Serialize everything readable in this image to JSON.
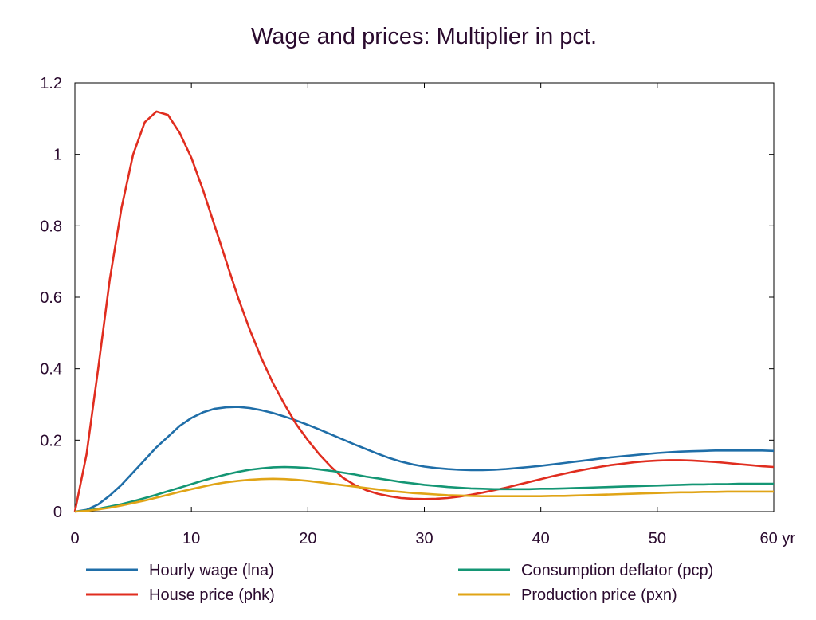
{
  "chart_data": {
    "type": "line",
    "title": "Wage and prices: Multiplier in pct.",
    "xlabel": "",
    "ylabel": "",
    "x_unit": "yr",
    "xlim": [
      0,
      60
    ],
    "ylim": [
      0,
      1.2
    ],
    "x_ticks": [
      0,
      10,
      20,
      30,
      40,
      50,
      60
    ],
    "x_tick_labels": [
      "0",
      "10",
      "20",
      "30",
      "40",
      "50",
      "60 yr"
    ],
    "y_ticks": [
      0,
      0.2,
      0.4,
      0.6,
      0.8,
      1.0,
      1.2
    ],
    "y_tick_labels": [
      "0",
      "0.2",
      "0.4",
      "0.6",
      "0.8",
      "1",
      "1.2"
    ],
    "grid": false,
    "legend_position": "bottom",
    "x": [
      0,
      1,
      2,
      3,
      4,
      5,
      6,
      7,
      8,
      9,
      10,
      11,
      12,
      13,
      14,
      15,
      16,
      17,
      18,
      19,
      20,
      21,
      22,
      23,
      24,
      25,
      26,
      27,
      28,
      29,
      30,
      31,
      32,
      33,
      34,
      35,
      36,
      37,
      38,
      39,
      40,
      41,
      42,
      43,
      44,
      45,
      46,
      47,
      48,
      49,
      50,
      51,
      52,
      53,
      54,
      55,
      56,
      57,
      58,
      59,
      60
    ],
    "series": [
      {
        "name": "Hourly wage (lna)",
        "color": "#1f6ea8",
        "values": [
          0,
          0.005,
          0.02,
          0.045,
          0.075,
          0.11,
          0.145,
          0.18,
          0.21,
          0.24,
          0.262,
          0.278,
          0.288,
          0.292,
          0.293,
          0.29,
          0.284,
          0.276,
          0.266,
          0.255,
          0.243,
          0.23,
          0.216,
          0.202,
          0.188,
          0.175,
          0.162,
          0.15,
          0.14,
          0.132,
          0.126,
          0.122,
          0.119,
          0.117,
          0.116,
          0.116,
          0.117,
          0.119,
          0.122,
          0.125,
          0.128,
          0.132,
          0.136,
          0.14,
          0.144,
          0.148,
          0.152,
          0.155,
          0.158,
          0.161,
          0.164,
          0.166,
          0.168,
          0.169,
          0.17,
          0.171,
          0.171,
          0.171,
          0.171,
          0.171,
          0.17
        ]
      },
      {
        "name": "House price (phk)",
        "color": "#e02d1f",
        "values": [
          0,
          0.16,
          0.4,
          0.65,
          0.85,
          1.0,
          1.09,
          1.12,
          1.11,
          1.06,
          0.99,
          0.9,
          0.8,
          0.7,
          0.6,
          0.51,
          0.43,
          0.36,
          0.3,
          0.245,
          0.2,
          0.16,
          0.125,
          0.095,
          0.075,
          0.06,
          0.05,
          0.043,
          0.038,
          0.036,
          0.035,
          0.036,
          0.038,
          0.042,
          0.047,
          0.053,
          0.06,
          0.067,
          0.075,
          0.083,
          0.091,
          0.099,
          0.106,
          0.113,
          0.119,
          0.125,
          0.13,
          0.134,
          0.138,
          0.141,
          0.143,
          0.144,
          0.144,
          0.143,
          0.141,
          0.139,
          0.136,
          0.133,
          0.13,
          0.127,
          0.125
        ]
      },
      {
        "name": "Consumption deflator (pcp)",
        "color": "#149674",
        "values": [
          0,
          0.003,
          0.008,
          0.014,
          0.021,
          0.029,
          0.038,
          0.047,
          0.057,
          0.067,
          0.077,
          0.087,
          0.096,
          0.104,
          0.111,
          0.117,
          0.121,
          0.124,
          0.125,
          0.124,
          0.122,
          0.118,
          0.114,
          0.109,
          0.104,
          0.098,
          0.093,
          0.088,
          0.083,
          0.079,
          0.075,
          0.072,
          0.069,
          0.067,
          0.065,
          0.064,
          0.063,
          0.063,
          0.063,
          0.063,
          0.064,
          0.064,
          0.065,
          0.066,
          0.067,
          0.068,
          0.069,
          0.07,
          0.071,
          0.072,
          0.073,
          0.074,
          0.075,
          0.076,
          0.076,
          0.077,
          0.077,
          0.078,
          0.078,
          0.078,
          0.078
        ]
      },
      {
        "name": "Production price (pxn)",
        "color": "#e0a416",
        "values": [
          0,
          0.002,
          0.006,
          0.011,
          0.017,
          0.024,
          0.031,
          0.039,
          0.047,
          0.055,
          0.063,
          0.07,
          0.077,
          0.082,
          0.086,
          0.089,
          0.091,
          0.092,
          0.091,
          0.089,
          0.086,
          0.082,
          0.078,
          0.074,
          0.07,
          0.066,
          0.062,
          0.058,
          0.055,
          0.052,
          0.05,
          0.048,
          0.046,
          0.045,
          0.044,
          0.043,
          0.043,
          0.043,
          0.043,
          0.043,
          0.043,
          0.044,
          0.044,
          0.045,
          0.046,
          0.047,
          0.048,
          0.049,
          0.05,
          0.051,
          0.052,
          0.053,
          0.054,
          0.054,
          0.055,
          0.055,
          0.056,
          0.056,
          0.056,
          0.056,
          0.056
        ]
      }
    ]
  }
}
